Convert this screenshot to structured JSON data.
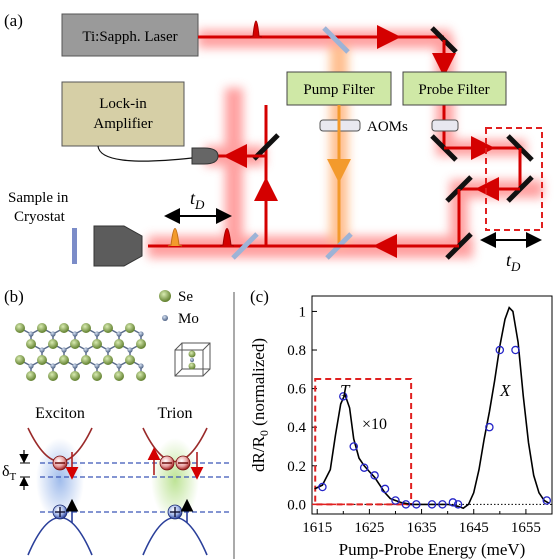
{
  "panel_a": {
    "panel_label": "(a)",
    "laser_label": "Ti:Sapph. Laser",
    "pump_filter_label": "Pump Filter",
    "probe_filter_label": "Probe Filter",
    "aoms_label": "AOMs",
    "lockin_line1": "Lock-in",
    "lockin_line2": "Amplifier",
    "sample_line1": "Sample in",
    "sample_line2": "Cryostat",
    "delay_label_main": "t",
    "delay_label_sub": "D"
  },
  "panel_b": {
    "panel_label": "(b)",
    "legend_se": "Se",
    "legend_mo": "Mo",
    "exciton_label": "Exciton",
    "trion_label": "Trion",
    "delta_main": "δ",
    "delta_sub": "T"
  },
  "panel_c": {
    "panel_label": "(c)",
    "ylabel_main": "dR/R",
    "ylabel_sub": "0",
    "ylabel_rest": " (normalized)",
    "xlabel": "Pump-Probe Energy (meV)",
    "label_T": "T",
    "label_X": "X",
    "label_x10": "×10",
    "yticks": [
      "0.0",
      "0.2",
      "0.4",
      "0.6",
      "0.8",
      "1"
    ],
    "xticks": [
      "1615",
      "1625",
      "1635",
      "1645",
      "1655"
    ]
  },
  "colors": {
    "laser_red": "#d40000",
    "pump_orange": "#f39a2c",
    "glow": "#ff9a9a",
    "filter_green": "#cfe8a6",
    "laser_box": "#9a9a9a",
    "lockin_box": "#d6cfa6",
    "fit_line": "#000000",
    "data_marker": "#2525c8",
    "dashed_box": "#e02020"
  },
  "chart_data": {
    "type": "scatter",
    "xlabel": "Pump-Probe Energy (meV)",
    "ylabel": "dR/R0 (normalized)",
    "xlim": [
      1614,
      1660
    ],
    "ylim": [
      -0.05,
      1.08
    ],
    "xticks": [
      1615,
      1625,
      1635,
      1645,
      1655
    ],
    "yticks": [
      0.0,
      0.2,
      0.4,
      0.6,
      0.8,
      1.0
    ],
    "series": [
      {
        "name": "data",
        "marker": "open-circle",
        "points": [
          [
            1616,
            0.09
          ],
          [
            1620,
            0.56
          ],
          [
            1622,
            0.3
          ],
          [
            1624,
            0.19
          ],
          [
            1626,
            0.15
          ],
          [
            1628,
            0.08
          ],
          [
            1630,
            0.02
          ],
          [
            1632,
            0.0
          ],
          [
            1634,
            0.0
          ],
          [
            1637,
            0.0
          ],
          [
            1639,
            0.0
          ],
          [
            1641,
            0.01
          ],
          [
            1642,
            0.0
          ],
          [
            1648,
            0.4
          ],
          [
            1650,
            0.8
          ],
          [
            1653,
            0.8
          ],
          [
            1659,
            0.02
          ]
        ]
      },
      {
        "name": "fit",
        "marker": "line",
        "points": [
          [
            1614.5,
            0.08
          ],
          [
            1616,
            0.1
          ],
          [
            1617.5,
            0.18
          ],
          [
            1618.5,
            0.36
          ],
          [
            1619.5,
            0.52
          ],
          [
            1620.3,
            0.57
          ],
          [
            1621.2,
            0.5
          ],
          [
            1622,
            0.34
          ],
          [
            1623,
            0.24
          ],
          [
            1624,
            0.2
          ],
          [
            1625,
            0.17
          ],
          [
            1626,
            0.14
          ],
          [
            1627,
            0.1
          ],
          [
            1628,
            0.06
          ],
          [
            1629,
            0.03
          ],
          [
            1630,
            0.02
          ],
          [
            1631,
            0.01
          ],
          [
            1633,
            0.0
          ],
          [
            1636,
            0.0
          ],
          [
            1640,
            0.0
          ],
          [
            1642,
            -0.01
          ],
          [
            1643,
            -0.02
          ],
          [
            1644,
            0.0
          ],
          [
            1645,
            0.06
          ],
          [
            1646,
            0.18
          ],
          [
            1647,
            0.34
          ],
          [
            1648,
            0.48
          ],
          [
            1649,
            0.64
          ],
          [
            1650,
            0.82
          ],
          [
            1651,
            0.96
          ],
          [
            1651.8,
            1.02
          ],
          [
            1652.5,
            1.0
          ],
          [
            1653.5,
            0.84
          ],
          [
            1654.5,
            0.56
          ],
          [
            1655.5,
            0.32
          ],
          [
            1656.5,
            0.15
          ],
          [
            1657.5,
            0.06
          ],
          [
            1658.5,
            0.02
          ],
          [
            1659.5,
            0.005
          ]
        ]
      }
    ],
    "baseline_dotted": 0.0,
    "highlight_box_x": [
      1615,
      1633
    ],
    "highlight_box_y": [
      0.0,
      0.65
    ],
    "grid": false,
    "legend": "none"
  }
}
